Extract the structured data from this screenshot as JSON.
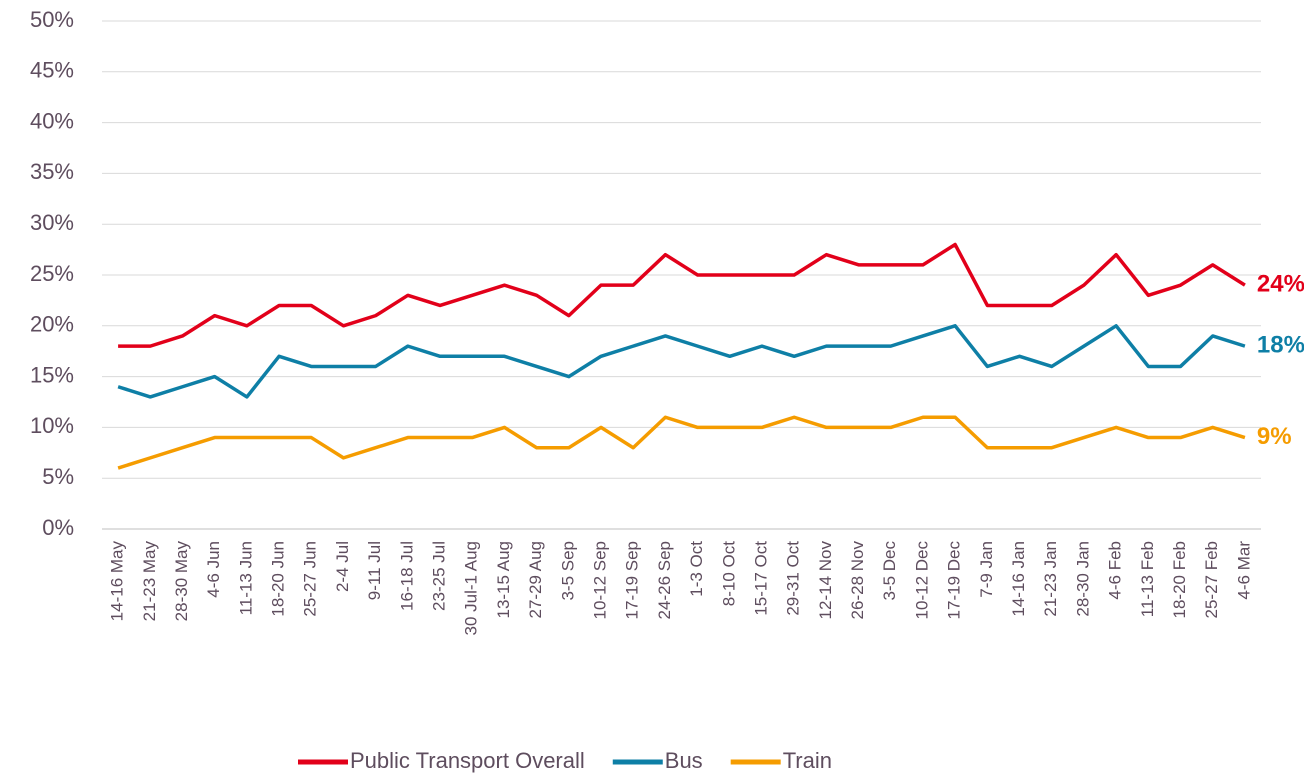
{
  "chart_data": {
    "type": "line",
    "categories": [
      "14-16 May",
      "21-23 May",
      "28-30 May",
      "4-6 Jun",
      "11-13 Jun",
      "18-20 Jun",
      "25-27 Jun",
      "2-4 Jul",
      "9-11 Jul",
      "16-18 Jul",
      "23-25 Jul",
      "30 Jul-1 Aug",
      "13-15 Aug",
      "27-29 Aug",
      "3-5 Sep",
      "10-12 Sep",
      "17-19 Sep",
      "24-26 Sep",
      "1-3 Oct",
      "8-10 Oct",
      "15-17 Oct",
      "29-31 Oct",
      "12-14 Nov",
      "26-28 Nov",
      "3-5 Dec",
      "10-12 Dec",
      "17-19 Dec",
      "7-9 Jan",
      "14-16 Jan",
      "21-23 Jan",
      "28-30 Jan",
      "4-6 Feb",
      "11-13 Feb",
      "18-20 Feb",
      "25-27 Feb",
      "4-6 Mar"
    ],
    "series": [
      {
        "name": "Public Transport Overall",
        "color": "#e2001a",
        "values": [
          18,
          18,
          19,
          21,
          20,
          22,
          22,
          20,
          21,
          23,
          22,
          23,
          24,
          23,
          21,
          24,
          24,
          27,
          25,
          25,
          25,
          25,
          27,
          26,
          26,
          26,
          28,
          22,
          22,
          22,
          24,
          27,
          23,
          24,
          26,
          24
        ],
        "value_labels": [
          null,
          null,
          null,
          null,
          null,
          null,
          null,
          null,
          null,
          null,
          null,
          null,
          null,
          null,
          null,
          null,
          null,
          null,
          null,
          null,
          null,
          null,
          null,
          null,
          null,
          null,
          null,
          null,
          null,
          null,
          null,
          null,
          null,
          null,
          null,
          "24%"
        ]
      },
      {
        "name": "Bus",
        "color": "#0e7fa6",
        "values": [
          14,
          13,
          14,
          15,
          13,
          17,
          16,
          16,
          16,
          18,
          17,
          17,
          17,
          16,
          15,
          17,
          18,
          19,
          18,
          17,
          18,
          17,
          18,
          18,
          18,
          19,
          20,
          16,
          17,
          16,
          18,
          20,
          16,
          16,
          19,
          18
        ],
        "value_labels": [
          null,
          null,
          null,
          null,
          null,
          null,
          null,
          null,
          null,
          null,
          null,
          null,
          null,
          null,
          null,
          null,
          null,
          null,
          null,
          null,
          null,
          null,
          null,
          null,
          null,
          null,
          null,
          null,
          null,
          null,
          null,
          null,
          null,
          null,
          null,
          "18%"
        ]
      },
      {
        "name": "Train",
        "color": "#f59c00",
        "values": [
          6,
          7,
          8,
          9,
          9,
          9,
          9,
          7,
          8,
          9,
          9,
          9,
          10,
          8,
          8,
          10,
          8,
          11,
          10,
          10,
          10,
          11,
          10,
          10,
          10,
          11,
          11,
          8,
          8,
          8,
          9,
          10,
          9,
          9,
          10,
          9
        ],
        "value_labels": [
          null,
          null,
          null,
          null,
          null,
          null,
          null,
          null,
          null,
          null,
          null,
          null,
          null,
          null,
          null,
          null,
          null,
          null,
          null,
          null,
          null,
          null,
          null,
          null,
          null,
          null,
          null,
          null,
          null,
          null,
          null,
          null,
          null,
          null,
          null,
          "9%"
        ]
      }
    ],
    "ylim": [
      0,
      50
    ],
    "yticks": [
      {
        "value": 0,
        "label": "0%"
      },
      {
        "value": 5,
        "label": "5%"
      },
      {
        "value": 10,
        "label": "10%"
      },
      {
        "value": 15,
        "label": "15%"
      },
      {
        "value": 20,
        "label": "20%"
      },
      {
        "value": 25,
        "label": "25%"
      },
      {
        "value": 30,
        "label": "30%"
      },
      {
        "value": 35,
        "label": "35%"
      },
      {
        "value": 40,
        "label": "40%"
      },
      {
        "value": 45,
        "label": "45%"
      },
      {
        "value": 50,
        "label": "50%"
      }
    ],
    "grid": true,
    "legend": "bottom"
  }
}
